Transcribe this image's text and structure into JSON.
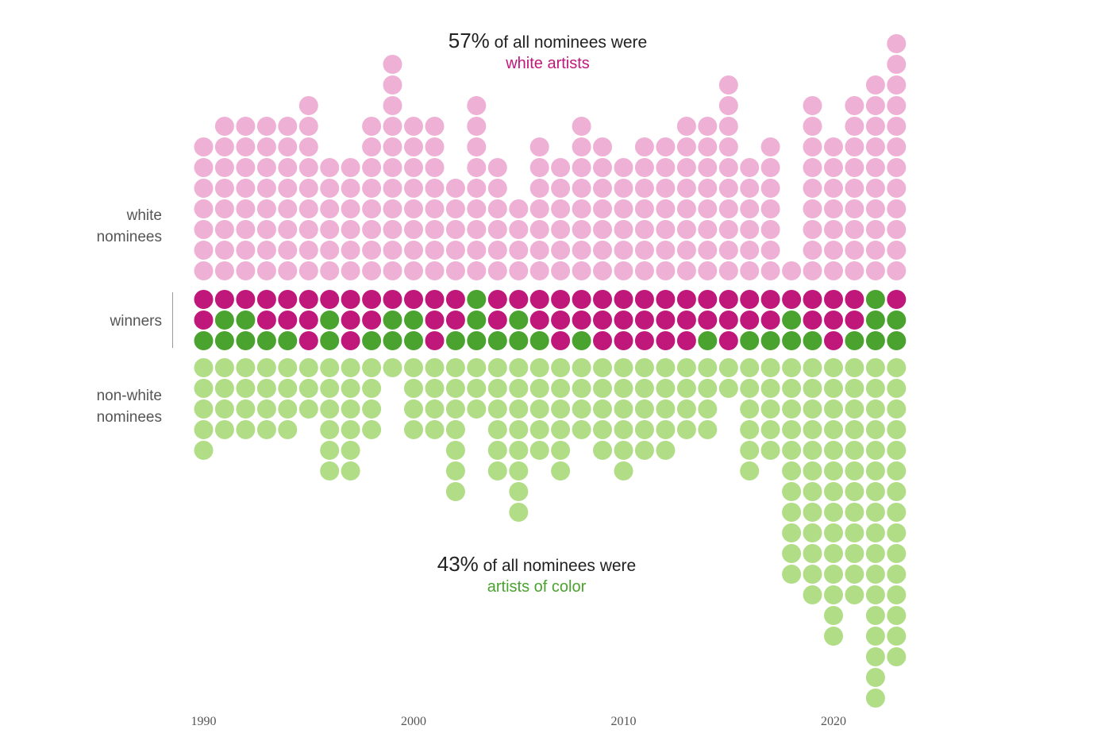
{
  "annotations": {
    "top": {
      "pct": "57%",
      "text": " of all nominees were",
      "highlight": "white artists"
    },
    "bottom": {
      "pct": "43%",
      "text": " of all nominees were",
      "highlight": "artists of color"
    }
  },
  "side_labels": {
    "white": [
      "white",
      "nominees"
    ],
    "winners": "winners",
    "nonwhite": [
      "non-white",
      "nominees"
    ]
  },
  "colors": {
    "white_nominee": "#efb0d6",
    "white_winner": "#c0187a",
    "nonwhite_winner": "#4aa32e",
    "nonwhite_nominee": "#b0dd86"
  },
  "chart_data": {
    "type": "dot-plot",
    "x_ticks": [
      1990,
      2000,
      2010,
      2020
    ],
    "years": [
      1990,
      1991,
      1992,
      1993,
      1994,
      1995,
      1996,
      1997,
      1998,
      1999,
      2000,
      2001,
      2002,
      2003,
      2004,
      2005,
      2006,
      2007,
      2008,
      2009,
      2010,
      2011,
      2012,
      2013,
      2014,
      2015,
      2016,
      2017,
      2018,
      2019,
      2020,
      2021,
      2022,
      2023
    ],
    "white_nominees": [
      7,
      8,
      8,
      8,
      8,
      9,
      6,
      6,
      8,
      11,
      8,
      8,
      5,
      9,
      6,
      4,
      7,
      6,
      8,
      7,
      6,
      7,
      7,
      8,
      8,
      10,
      6,
      7,
      1,
      9,
      7,
      9,
      10,
      12
    ],
    "winners": [
      [
        "w",
        "w",
        "n"
      ],
      [
        "w",
        "n",
        "n"
      ],
      [
        "w",
        "n",
        "n"
      ],
      [
        "w",
        "w",
        "n"
      ],
      [
        "w",
        "w",
        "n"
      ],
      [
        "w",
        "w",
        "w"
      ],
      [
        "w",
        "n",
        "n"
      ],
      [
        "w",
        "w",
        "w"
      ],
      [
        "w",
        "w",
        "n"
      ],
      [
        "w",
        "n",
        "n"
      ],
      [
        "w",
        "n",
        "n"
      ],
      [
        "w",
        "w",
        "w"
      ],
      [
        "w",
        "w",
        "n"
      ],
      [
        "n",
        "n",
        "n"
      ],
      [
        "w",
        "w",
        "n"
      ],
      [
        "w",
        "n",
        "n"
      ],
      [
        "w",
        "w",
        "n"
      ],
      [
        "w",
        "w",
        "w"
      ],
      [
        "w",
        "w",
        "n"
      ],
      [
        "w",
        "w",
        "w"
      ],
      [
        "w",
        "w",
        "w"
      ],
      [
        "w",
        "w",
        "w"
      ],
      [
        "w",
        "w",
        "w"
      ],
      [
        "w",
        "w",
        "w"
      ],
      [
        "w",
        "w",
        "n"
      ],
      [
        "w",
        "w",
        "w"
      ],
      [
        "w",
        "w",
        "n"
      ],
      [
        "w",
        "w",
        "n"
      ],
      [
        "w",
        "n",
        "n"
      ],
      [
        "w",
        "w",
        "n"
      ],
      [
        "w",
        "w",
        "w"
      ],
      [
        "w",
        "w",
        "n"
      ],
      [
        "n",
        "n",
        "n"
      ],
      [
        "w",
        "n",
        "n"
      ]
    ],
    "nonwhite_nominees": [
      5,
      4,
      4,
      4,
      4,
      3,
      6,
      6,
      4,
      1,
      4,
      4,
      7,
      3,
      6,
      8,
      5,
      6,
      4,
      5,
      6,
      5,
      5,
      4,
      4,
      2,
      6,
      5,
      11,
      12,
      14,
      12,
      17,
      15
    ]
  }
}
